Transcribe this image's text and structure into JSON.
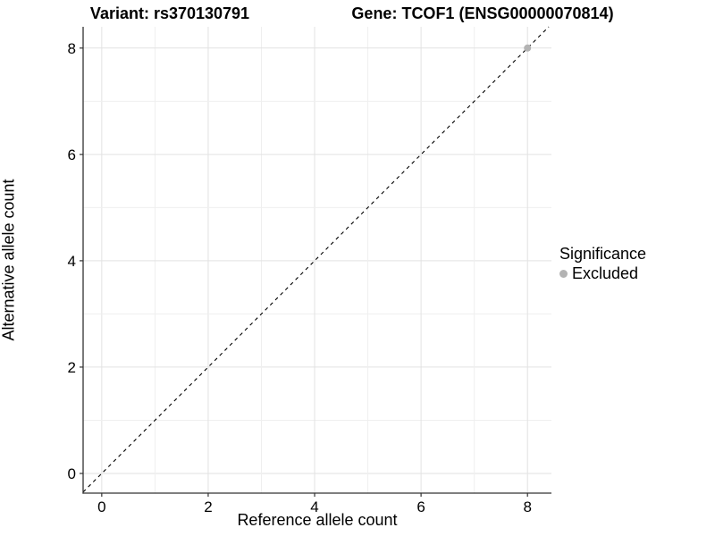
{
  "title": {
    "left": "Variant: rs370130791",
    "right": "Gene: TCOF1 (ENSG00000070814)"
  },
  "chart_data": {
    "type": "scatter",
    "xlabel": "Reference allele count",
    "ylabel": "Alternative allele count",
    "xticks": [
      0,
      2,
      4,
      6,
      8
    ],
    "yticks": [
      0,
      2,
      4,
      6,
      8
    ],
    "xlim": [
      -0.35,
      8.45
    ],
    "ylim": [
      -0.37,
      8.4
    ],
    "grid": {
      "on": true,
      "interval": 1,
      "major_interval": 2,
      "major_color": "#e2e2e2",
      "minor_color": "#efefef"
    },
    "identity_line": {
      "style": "dashed",
      "slope": 1,
      "intercept": 0,
      "color": "#000000"
    },
    "series": [
      {
        "name": "Excluded",
        "color": "#b3b3b3",
        "points": [
          [
            8,
            8
          ]
        ]
      }
    ],
    "legend": {
      "title": "Significance",
      "position": "right",
      "entries": [
        {
          "label": "Excluded",
          "color": "#b3b3b3"
        }
      ]
    }
  },
  "colors": {
    "background": "#ffffff",
    "axis_line": "#333333",
    "tick": "#333333",
    "text": "#000000"
  }
}
